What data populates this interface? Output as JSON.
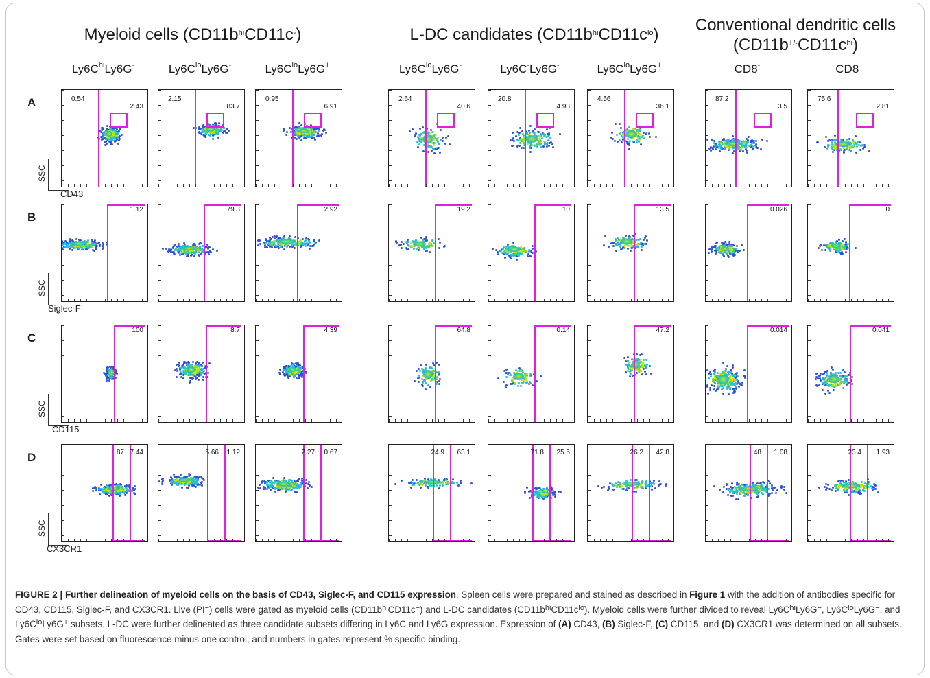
{
  "groups": [
    {
      "title": "Myeloid cells (CD11b",
      "sup1": "hi",
      "mid": "CD11c",
      "sup2": "-",
      "end": ")"
    },
    {
      "title": "L-DC candidates (CD11b",
      "sup1": "hi",
      "mid": "CD11c",
      "sup2": "lo",
      "end": ")"
    },
    {
      "title": "Conventional dendritic cells",
      "line2": "(CD11b",
      "sup1": "+/-",
      "mid": "CD11c",
      "sup2": "hi",
      "end": ")"
    }
  ],
  "subsets": [
    {
      "a": "Ly6C",
      "s1": "hi",
      "b": "Ly6G",
      "s2": "-"
    },
    {
      "a": "Ly6C",
      "s1": "lo",
      "b": "Ly6G",
      "s2": "-"
    },
    {
      "a": "Ly6C",
      "s1": "lo",
      "b": "Ly6G",
      "s2": "+"
    },
    {
      "a": "Ly6C",
      "s1": "lo",
      "b": "Ly6G",
      "s2": "-"
    },
    {
      "a": "Ly6C",
      "s1": "-",
      "b": "Ly6G",
      "s2": "-"
    },
    {
      "a": "Ly6C",
      "s1": "lo",
      "b": "Ly6G",
      "s2": "+"
    },
    {
      "a": "CD8",
      "s1": "",
      "b": "",
      "s2": "-"
    },
    {
      "a": "CD8",
      "s1": "",
      "b": "",
      "s2": "+"
    }
  ],
  "rows": [
    {
      "letter": "A",
      "marker": "CD43",
      "values": [
        [
          "0.54",
          "2.43"
        ],
        [
          "2.15",
          "83.7"
        ],
        [
          "0.95",
          "6.91"
        ],
        [
          "2.64",
          "40.6"
        ],
        [
          "20.8",
          "4.93"
        ],
        [
          "4.56",
          "36.1"
        ],
        [
          "87.2",
          "3.5"
        ],
        [
          "75.6",
          "2.81"
        ]
      ]
    },
    {
      "letter": "B",
      "marker": "Siglec-F",
      "values": [
        [
          "1.12"
        ],
        [
          "79.3"
        ],
        [
          "2.92"
        ],
        [
          "19.2"
        ],
        [
          "10"
        ],
        [
          "13.5"
        ],
        [
          "0.026"
        ],
        [
          "0"
        ]
      ]
    },
    {
      "letter": "C",
      "marker": "CD115",
      "values": [
        [
          "100"
        ],
        [
          "8.7"
        ],
        [
          "4.39"
        ],
        [
          "64.8"
        ],
        [
          "0.14"
        ],
        [
          "47.2"
        ],
        [
          "0.014"
        ],
        [
          "0.041"
        ]
      ]
    },
    {
      "letter": "D",
      "marker": "CX3CR1",
      "values": [
        [
          "87",
          "7.44"
        ],
        [
          "5.66",
          "1.12"
        ],
        [
          "2.27",
          "0.67"
        ],
        [
          "24.9",
          "63.1"
        ],
        [
          "71.8",
          "25.5"
        ],
        [
          "26.2",
          "42.8"
        ],
        [
          "48",
          "1.08"
        ],
        [
          "23.4",
          "1.93"
        ]
      ]
    }
  ],
  "y_axis_label": "SSC",
  "colors": {
    "gate": "#e01fe0"
  },
  "caption": {
    "label": "FIGURE 2 | Further delineation of myeloid cells on the basis of CD43, Siglec-F, and CD115 expression",
    "t1": ". Spleen cells were prepared and stained as described in ",
    "ref": "Figure 1",
    "t2": " with the addition of antibodies specific for CD43, CD115, Siglec-F, and CX3CR1. Live (PI",
    "t3": ") cells were gated as myeloid cells (CD11b",
    "t4": "CD11c",
    "t5": ") and L-DC candidates (CD11b",
    "t6": "CD11c",
    "t7": "). Myeloid cells were further divided to reveal Ly6C",
    "t8": "Ly6G",
    "t9": ", Ly6C",
    "t10": "Ly6G",
    "t11": ", and Ly6C",
    "t12": "Ly6G",
    "t13": " subsets. L-DC were further delineated as three candidate subsets differing in Ly6C and Ly6G expression. Expression of ",
    "a": "(A)",
    "a_t": " CD43, ",
    "b": "(B)",
    "b_t": " Siglec-F, ",
    "c": "(C)",
    "c_t": " CD115, and ",
    "d": "(D)",
    "d_t": " CX3CR1 was determined on all subsets. Gates were set based on fluorescence minus one control, and numbers in gates represent % specific binding."
  }
}
